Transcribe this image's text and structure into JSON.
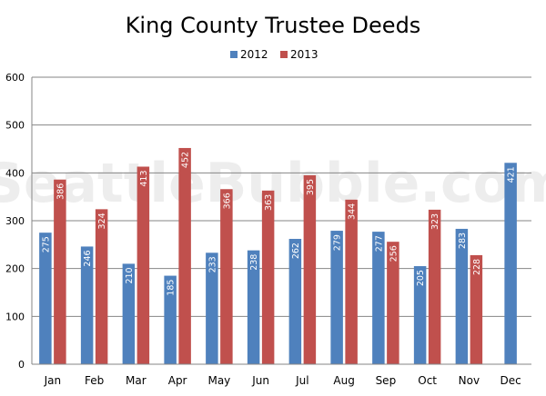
{
  "watermark": "SeattleBubble.com",
  "chart_data": {
    "type": "bar",
    "title": "King County Trustee Deeds",
    "categories": [
      "Jan",
      "Feb",
      "Mar",
      "Apr",
      "May",
      "Jun",
      "Jul",
      "Aug",
      "Sep",
      "Oct",
      "Nov",
      "Dec"
    ],
    "series": [
      {
        "name": "2012",
        "color": "#4f81bd",
        "values": [
          275,
          246,
          210,
          185,
          233,
          238,
          262,
          279,
          277,
          205,
          283,
          421
        ]
      },
      {
        "name": "2013",
        "color": "#c0504d",
        "values": [
          386,
          324,
          413,
          452,
          366,
          363,
          395,
          344,
          256,
          323,
          228,
          null
        ]
      }
    ],
    "ylim": [
      0,
      600
    ],
    "yticks": [
      0,
      100,
      200,
      300,
      400,
      500,
      600
    ],
    "grid": true,
    "legend": "top-center",
    "data_labels": true
  }
}
